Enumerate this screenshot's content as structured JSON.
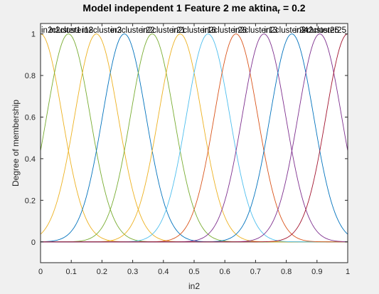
{
  "chart_data": {
    "type": "line",
    "title": "Model independent 1 Feature 2 me aktina",
    "title_sub": "r",
    "title_suffix": " = 0.2",
    "xlabel": "in2",
    "ylabel": "Degree of membership",
    "xlim": [
      0,
      1
    ],
    "ylim": [
      -0.1,
      1.05
    ],
    "xticks": [
      0,
      0.1,
      0.2,
      0.3,
      0.4,
      0.5,
      0.6,
      0.7,
      0.8,
      0.9,
      1
    ],
    "xtick_labels": [
      "0",
      "0.1",
      "0.2",
      "0.3",
      "0.4",
      "0.5",
      "0.6",
      "0.7",
      "0.8",
      "0.9",
      "1"
    ],
    "yticks": [
      0,
      0.2,
      0.4,
      0.6,
      0.8,
      1
    ],
    "ytick_labels": [
      "0",
      "0.2",
      "0.4",
      "0.6",
      "0.8",
      "1"
    ],
    "grid": false,
    "membership_function": "gaussian",
    "sigma": 0.0707,
    "series": [
      {
        "name": "in2cluster1",
        "center": 0.0,
        "color": "#EDB120"
      },
      {
        "name": "in2cluster2",
        "center": 0.0909,
        "color": "#77AC30"
      },
      {
        "name": "in2cluster3",
        "center": 0.1818,
        "color": "#EDB120"
      },
      {
        "name": "in2cluster4",
        "center": 0.2727,
        "color": "#0072BD"
      },
      {
        "name": "in2cluster5",
        "center": 0.3636,
        "color": "#77AC30"
      },
      {
        "name": "in2cluster6",
        "center": 0.4545,
        "color": "#EDB120"
      },
      {
        "name": "in2cluster7",
        "center": 0.5455,
        "color": "#4DBEEE"
      },
      {
        "name": "in2cluster8",
        "center": 0.6364,
        "color": "#D95319"
      },
      {
        "name": "in2cluster9",
        "center": 0.7273,
        "color": "#7E2F8E"
      },
      {
        "name": "in2cluster10",
        "center": 0.8182,
        "color": "#0072BD"
      },
      {
        "name": "in2cluster11",
        "center": 0.9091,
        "color": "#7E2F8E"
      },
      {
        "name": "in2cluster12",
        "center": 1.0,
        "color": "#A2142F"
      }
    ],
    "overlapping_labels": [
      "in2cluster1",
      "in2cluster18",
      "in2cluster3",
      "in2cluster22",
      "in2cluster21",
      "in2cluster16",
      "in2cluster26",
      "in2cluster13",
      "in2cluster24",
      "in2cluster25",
      "in2cluster25"
    ]
  }
}
